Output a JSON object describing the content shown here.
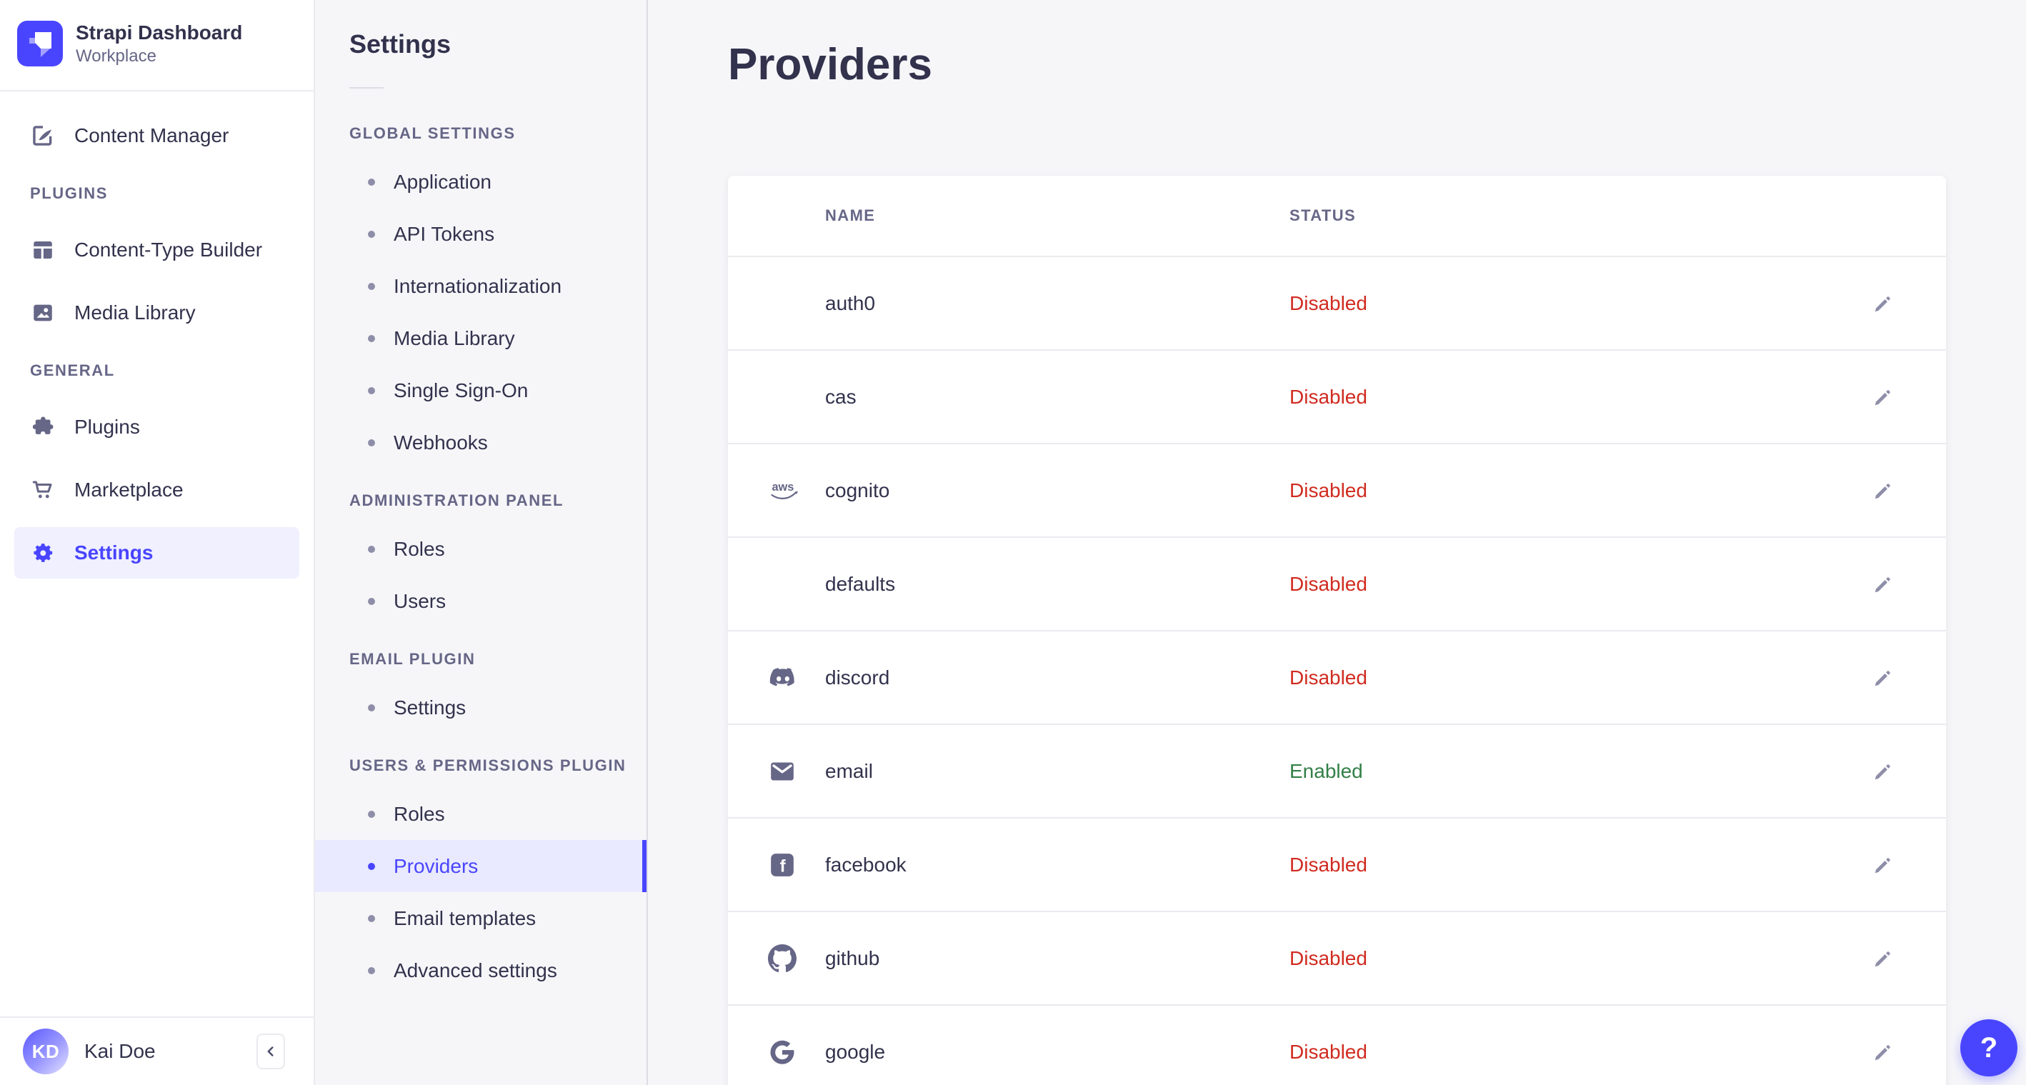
{
  "sidebar": {
    "brand": {
      "title": "Strapi Dashboard",
      "subtitle": "Workplace",
      "logo_icon": "strapi-logo"
    },
    "primary_item": {
      "label": "Content Manager",
      "icon": "content-manager"
    },
    "sections": [
      {
        "label": "PLUGINS",
        "items": [
          {
            "label": "Content-Type Builder",
            "icon": "content-type-builder"
          },
          {
            "label": "Media Library",
            "icon": "media-library"
          }
        ]
      },
      {
        "label": "GENERAL",
        "items": [
          {
            "label": "Plugins",
            "icon": "plugins"
          },
          {
            "label": "Marketplace",
            "icon": "marketplace"
          },
          {
            "label": "Settings",
            "icon": "settings",
            "selected": true
          }
        ]
      }
    ],
    "user": {
      "initials": "KD",
      "name": "Kai Doe"
    },
    "collapse_icon": "chevron-left"
  },
  "subnav": {
    "title": "Settings",
    "sections": [
      {
        "label": "GLOBAL SETTINGS",
        "items": [
          {
            "label": "Application"
          },
          {
            "label": "API Tokens"
          },
          {
            "label": "Internationalization"
          },
          {
            "label": "Media Library"
          },
          {
            "label": "Single Sign-On"
          },
          {
            "label": "Webhooks"
          }
        ]
      },
      {
        "label": "ADMINISTRATION PANEL",
        "items": [
          {
            "label": "Roles"
          },
          {
            "label": "Users"
          }
        ]
      },
      {
        "label": "EMAIL PLUGIN",
        "items": [
          {
            "label": "Settings"
          }
        ]
      },
      {
        "label": "USERS & PERMISSIONS PLUGIN",
        "items": [
          {
            "label": "Roles"
          },
          {
            "label": "Providers",
            "selected": true
          },
          {
            "label": "Email templates"
          },
          {
            "label": "Advanced settings"
          }
        ]
      }
    ]
  },
  "main": {
    "title": "Providers",
    "table": {
      "columns": [
        "NAME",
        "STATUS"
      ],
      "rows": [
        {
          "name": "auth0",
          "icon": null,
          "status": "Disabled"
        },
        {
          "name": "cas",
          "icon": null,
          "status": "Disabled"
        },
        {
          "name": "cognito",
          "icon": "aws",
          "status": "Disabled"
        },
        {
          "name": "defaults",
          "icon": null,
          "status": "Disabled"
        },
        {
          "name": "discord",
          "icon": "discord",
          "status": "Disabled"
        },
        {
          "name": "email",
          "icon": "envelope",
          "status": "Enabled"
        },
        {
          "name": "facebook",
          "icon": "facebook",
          "status": "Disabled"
        },
        {
          "name": "github",
          "icon": "github",
          "status": "Disabled"
        },
        {
          "name": "google",
          "icon": "google",
          "status": "Disabled"
        }
      ],
      "edit_icon": "pencil"
    }
  },
  "help": {
    "label": "?"
  },
  "colors": {
    "primary": "#4945ff",
    "danger": "#d02b20",
    "success": "#328048",
    "selected_bg_sidebar": "#f0f0ff",
    "selected_bg_subnav": "#e9e9ff",
    "muted_text": "#666687",
    "dark_text": "#32324d",
    "background": "#f6f6f9",
    "border": "#eaeaef"
  }
}
